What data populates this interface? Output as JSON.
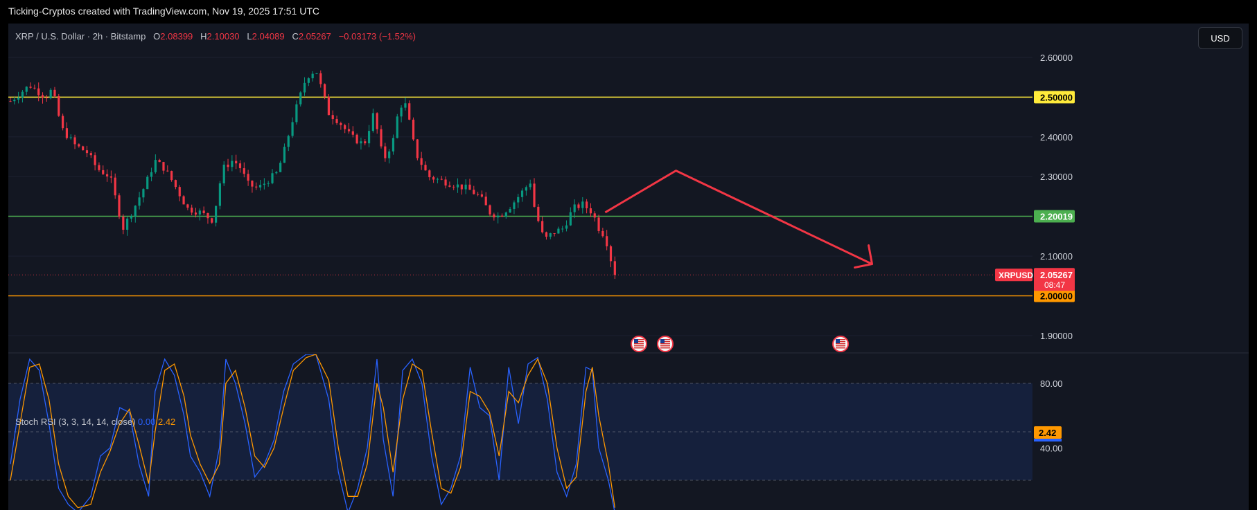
{
  "credit": "Ticking-Cryptos created with TradingView.com, Nov 19, 2025 17:51 UTC",
  "header": {
    "symbol": "XRP / U.S. Dollar · 2h · Bitstamp",
    "open_label": "O",
    "open": "2.08399",
    "high_label": "H",
    "high": "2.10030",
    "low_label": "L",
    "low": "2.04089",
    "close_label": "C",
    "close": "2.05267",
    "change": "−0.03173 (−1.52%)"
  },
  "currency_button": "USD",
  "colors": {
    "panel_bg": "#131722",
    "up_candle": "#089981",
    "down_candle": "#f23645",
    "resistance": "#ffeb3b",
    "support_green": "#4caf50",
    "support_orange": "#ff9800",
    "trend_arrow": "#f23645",
    "stoch_k": "#2962ff",
    "stoch_d": "#ff9800"
  },
  "chart_data": {
    "type": "candlestick",
    "price_axis": {
      "ticks": [
        "2.60000",
        "2.40000",
        "2.30000",
        "2.10000",
        "1.90000"
      ],
      "range": [
        1.865,
        2.64
      ]
    },
    "levels": [
      {
        "value": 2.5,
        "label": "2.50000",
        "color": "#ffeb3b"
      },
      {
        "value": 2.20019,
        "label": "2.20019",
        "color": "#4caf50"
      },
      {
        "value": 2.0,
        "label": "2.00000",
        "color": "#ff9800"
      }
    ],
    "last_price": {
      "symbol": "XRPUSD",
      "value": 2.05267,
      "label": "2.05267",
      "countdown": "08:47"
    },
    "candle_count": 151,
    "close_path": [
      [
        0,
        2.49
      ],
      [
        6,
        2.53
      ],
      [
        11,
        2.5
      ],
      [
        13,
        2.52
      ],
      [
        16,
        2.42
      ],
      [
        20,
        2.38
      ],
      [
        24,
        2.36
      ],
      [
        27,
        2.32
      ],
      [
        31,
        2.3
      ],
      [
        35,
        2.17
      ],
      [
        39,
        2.23
      ],
      [
        42,
        2.28
      ],
      [
        45,
        2.34
      ],
      [
        48,
        2.32
      ],
      [
        51,
        2.28
      ],
      [
        55,
        2.22
      ],
      [
        59,
        2.21
      ],
      [
        63,
        2.19
      ],
      [
        66,
        2.32
      ],
      [
        69,
        2.34
      ],
      [
        71,
        2.33
      ],
      [
        74,
        2.28
      ],
      [
        77,
        2.27
      ],
      [
        80,
        2.29
      ],
      [
        83,
        2.31
      ],
      [
        85,
        2.36
      ],
      [
        88,
        2.45
      ],
      [
        92,
        2.55
      ],
      [
        95,
        2.57
      ],
      [
        99,
        2.46
      ],
      [
        102,
        2.44
      ],
      [
        106,
        2.4
      ],
      [
        110,
        2.38
      ],
      [
        113,
        2.46
      ],
      [
        116,
        2.34
      ],
      [
        119,
        2.39
      ],
      [
        121,
        2.48
      ],
      [
        123,
        2.48
      ],
      [
        126,
        2.36
      ],
      [
        130,
        2.3
      ],
      [
        134,
        2.29
      ],
      [
        138,
        2.28
      ],
      [
        142,
        2.27
      ],
      [
        146,
        2.25
      ],
      [
        149,
        2.21
      ],
      [
        152,
        2.2
      ],
      [
        156,
        2.23
      ],
      [
        159,
        2.26
      ],
      [
        162,
        2.29
      ],
      [
        163,
        2.22
      ],
      [
        166,
        2.14
      ],
      [
        169,
        2.16
      ],
      [
        172,
        2.17
      ],
      [
        175,
        2.22
      ],
      [
        178,
        2.23
      ],
      [
        181,
        2.21
      ],
      [
        183,
        2.17
      ],
      [
        185,
        2.15
      ],
      [
        188,
        2.05
      ]
    ],
    "trend_arrow": {
      "from": [
        185,
        2.21
      ],
      "peak": [
        207,
        2.315
      ],
      "to": [
        268,
        2.08
      ]
    },
    "calendar_events": 3,
    "stoch_rsi": {
      "label": "Stoch RSI (3, 3, 14, 14, close)",
      "k": "0.00",
      "d": "2.42",
      "d_badge": "2.42",
      "ticks": [
        "80.00",
        "40.00"
      ],
      "band": [
        20,
        80
      ],
      "k_path": [
        [
          0,
          30
        ],
        [
          3,
          70
        ],
        [
          6,
          95
        ],
        [
          9,
          88
        ],
        [
          12,
          55
        ],
        [
          15,
          15
        ],
        [
          18,
          5
        ],
        [
          21,
          0
        ],
        [
          25,
          10
        ],
        [
          28,
          35
        ],
        [
          31,
          40
        ],
        [
          34,
          65
        ],
        [
          37,
          62
        ],
        [
          40,
          30
        ],
        [
          43,
          10
        ],
        [
          45,
          75
        ],
        [
          48,
          95
        ],
        [
          51,
          85
        ],
        [
          54,
          60
        ],
        [
          56,
          35
        ],
        [
          59,
          25
        ],
        [
          62,
          10
        ],
        [
          65,
          40
        ],
        [
          67,
          95
        ],
        [
          70,
          80
        ],
        [
          73,
          55
        ],
        [
          76,
          22
        ],
        [
          79,
          30
        ],
        [
          82,
          45
        ],
        [
          85,
          75
        ],
        [
          88,
          92
        ],
        [
          92,
          98
        ],
        [
          95,
          98
        ],
        [
          99,
          70
        ],
        [
          102,
          25
        ],
        [
          105,
          0
        ],
        [
          108,
          15
        ],
        [
          111,
          40
        ],
        [
          114,
          95
        ],
        [
          116,
          45
        ],
        [
          119,
          10
        ],
        [
          122,
          88
        ],
        [
          125,
          95
        ],
        [
          128,
          80
        ],
        [
          131,
          35
        ],
        [
          134,
          5
        ],
        [
          137,
          15
        ],
        [
          140,
          35
        ],
        [
          143,
          90
        ],
        [
          146,
          65
        ],
        [
          149,
          60
        ],
        [
          152,
          20
        ],
        [
          155,
          90
        ],
        [
          158,
          55
        ],
        [
          161,
          92
        ],
        [
          164,
          96
        ],
        [
          167,
          70
        ],
        [
          170,
          25
        ],
        [
          173,
          10
        ],
        [
          176,
          30
        ],
        [
          179,
          90
        ],
        [
          181,
          88
        ],
        [
          183,
          40
        ],
        [
          186,
          20
        ],
        [
          188,
          0
        ]
      ],
      "d_path": [
        [
          0,
          20
        ],
        [
          3,
          55
        ],
        [
          6,
          90
        ],
        [
          9,
          92
        ],
        [
          12,
          70
        ],
        [
          15,
          30
        ],
        [
          18,
          10
        ],
        [
          21,
          3
        ],
        [
          25,
          5
        ],
        [
          28,
          25
        ],
        [
          31,
          38
        ],
        [
          34,
          55
        ],
        [
          37,
          64
        ],
        [
          40,
          42
        ],
        [
          43,
          18
        ],
        [
          45,
          50
        ],
        [
          48,
          88
        ],
        [
          51,
          92
        ],
        [
          54,
          72
        ],
        [
          56,
          48
        ],
        [
          59,
          30
        ],
        [
          62,
          18
        ],
        [
          65,
          30
        ],
        [
          67,
          80
        ],
        [
          70,
          88
        ],
        [
          73,
          65
        ],
        [
          76,
          35
        ],
        [
          79,
          28
        ],
        [
          82,
          40
        ],
        [
          85,
          65
        ],
        [
          88,
          88
        ],
        [
          92,
          96
        ],
        [
          95,
          98
        ],
        [
          99,
          82
        ],
        [
          102,
          40
        ],
        [
          105,
          10
        ],
        [
          108,
          10
        ],
        [
          111,
          30
        ],
        [
          114,
          80
        ],
        [
          116,
          65
        ],
        [
          119,
          25
        ],
        [
          122,
          70
        ],
        [
          125,
          92
        ],
        [
          128,
          88
        ],
        [
          131,
          50
        ],
        [
          134,
          15
        ],
        [
          137,
          12
        ],
        [
          140,
          28
        ],
        [
          143,
          75
        ],
        [
          146,
          72
        ],
        [
          149,
          62
        ],
        [
          152,
          35
        ],
        [
          155,
          75
        ],
        [
          158,
          68
        ],
        [
          161,
          85
        ],
        [
          164,
          95
        ],
        [
          167,
          80
        ],
        [
          170,
          40
        ],
        [
          173,
          15
        ],
        [
          176,
          22
        ],
        [
          179,
          75
        ],
        [
          181,
          90
        ],
        [
          183,
          60
        ],
        [
          186,
          30
        ],
        [
          188,
          3
        ]
      ]
    }
  }
}
